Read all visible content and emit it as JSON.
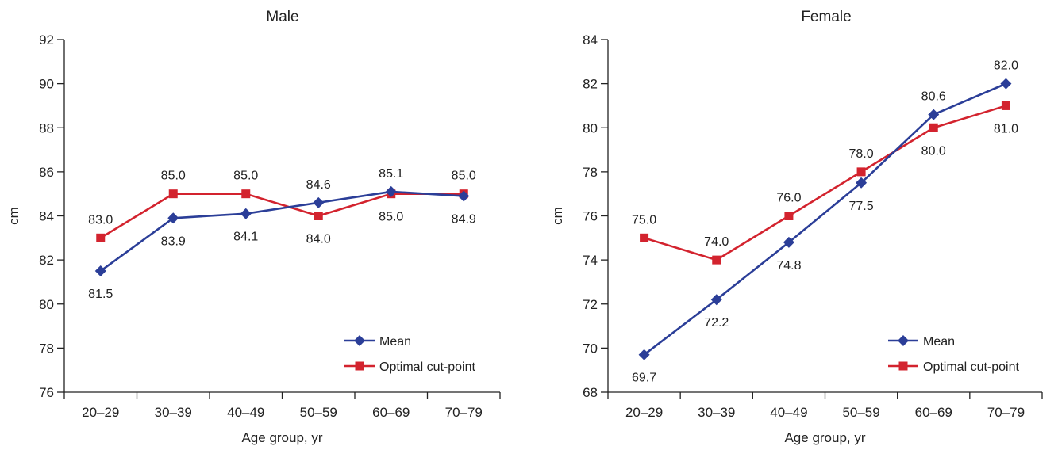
{
  "chart_data": [
    {
      "type": "line",
      "title": "Male",
      "xlabel": "Age group, yr",
      "ylabel": "cm",
      "categories": [
        "20–29",
        "30–39",
        "40–49",
        "50–59",
        "60–69",
        "70–79"
      ],
      "ylim": [
        76,
        92
      ],
      "yticks": [
        76,
        78,
        80,
        82,
        84,
        86,
        88,
        90,
        92
      ],
      "grid": false,
      "legend_position": "bottom-right",
      "series": [
        {
          "name": "Mean",
          "color": "#2b3e98",
          "marker": "diamond",
          "values": [
            81.5,
            83.9,
            84.1,
            84.6,
            85.1,
            84.9
          ],
          "labels": [
            "81.5",
            "83.9",
            "84.1",
            "84.6",
            "85.1",
            "84.9"
          ],
          "label_side": [
            "below",
            "below",
            "below",
            "above",
            "above",
            "below"
          ]
        },
        {
          "name": "Optimal cut-point",
          "color": "#d3232e",
          "marker": "square",
          "values": [
            83.0,
            85.0,
            85.0,
            84.0,
            85.0,
            85.0
          ],
          "labels": [
            "83.0",
            "85.0",
            "85.0",
            "84.0",
            "85.0",
            "85.0"
          ],
          "label_side": [
            "above",
            "above",
            "above",
            "below",
            "below",
            "above"
          ]
        }
      ]
    },
    {
      "type": "line",
      "title": "Female",
      "xlabel": "Age group, yr",
      "ylabel": "cm",
      "categories": [
        "20–29",
        "30–39",
        "40–49",
        "50–59",
        "60–69",
        "70–79"
      ],
      "ylim": [
        68,
        84
      ],
      "yticks": [
        68,
        70,
        72,
        74,
        76,
        78,
        80,
        82,
        84
      ],
      "grid": false,
      "legend_position": "bottom-right",
      "series": [
        {
          "name": "Mean",
          "color": "#2b3e98",
          "marker": "diamond",
          "values": [
            69.7,
            72.2,
            74.8,
            77.5,
            80.6,
            82.0
          ],
          "labels": [
            "69.7",
            "72.2",
            "74.8",
            "77.5",
            "80.6",
            "82.0"
          ],
          "label_side": [
            "below",
            "below",
            "below",
            "below",
            "above",
            "above"
          ]
        },
        {
          "name": "Optimal cut-point",
          "color": "#d3232e",
          "marker": "square",
          "values": [
            75.0,
            74.0,
            76.0,
            78.0,
            80.0,
            81.0
          ],
          "labels": [
            "75.0",
            "74.0",
            "76.0",
            "78.0",
            "80.0",
            "81.0"
          ],
          "label_side": [
            "above",
            "above",
            "above",
            "above",
            "below",
            "below"
          ]
        }
      ]
    }
  ]
}
